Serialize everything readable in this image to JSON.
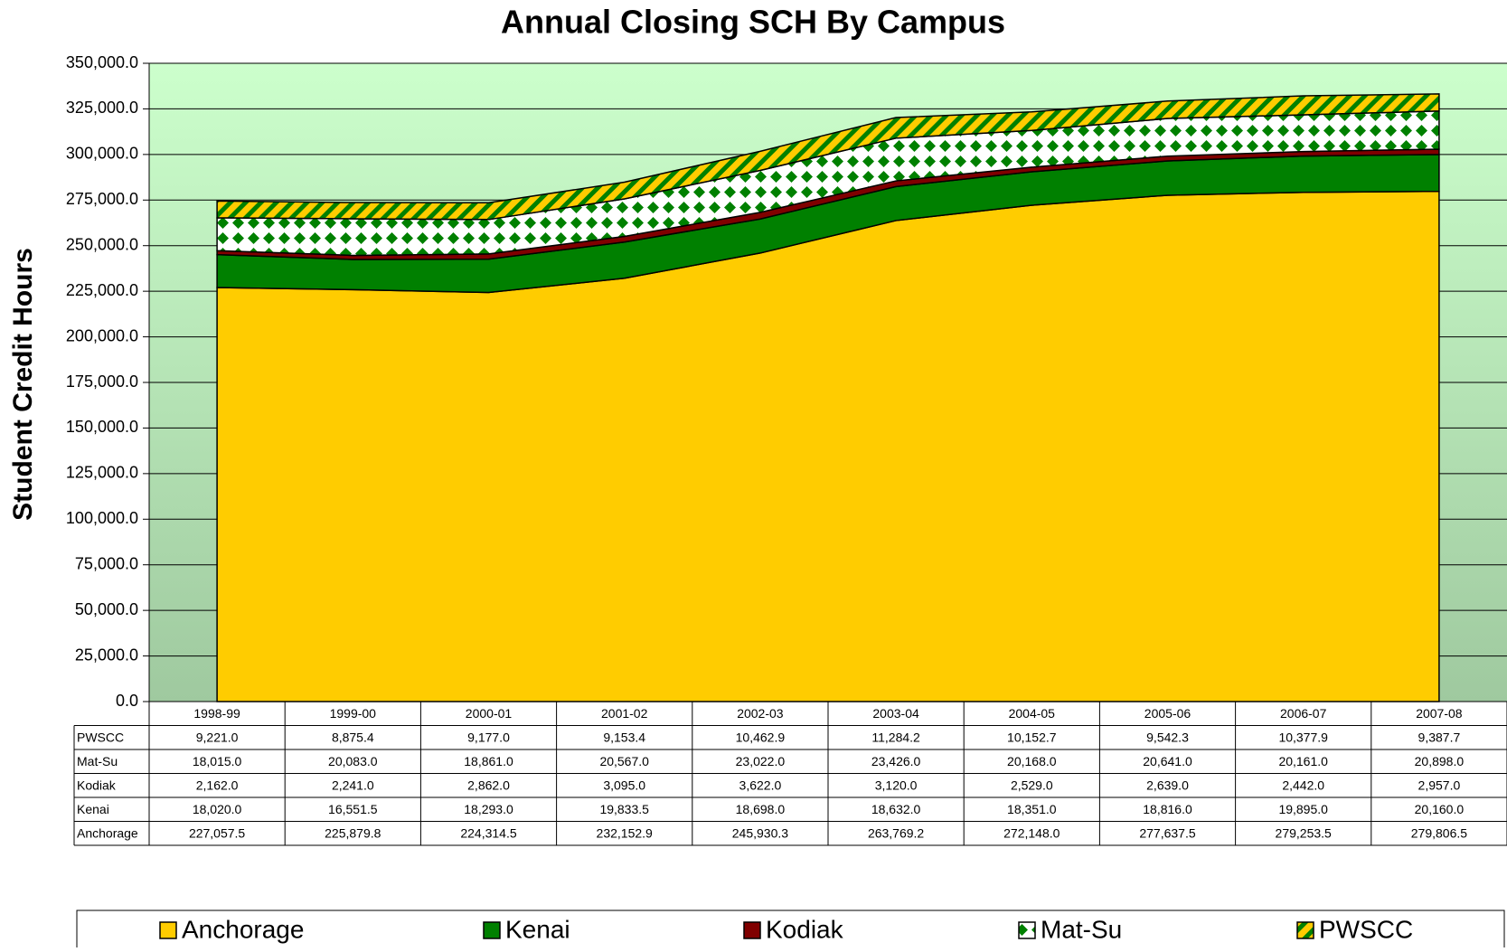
{
  "chart_data": {
    "type": "stacked_area",
    "title": "Annual Closing SCH By Campus",
    "y_label": "Student Credit Hours",
    "categories": [
      "1998-99",
      "1999-00",
      "2000-01",
      "2001-02",
      "2002-03",
      "2003-04",
      "2004-05",
      "2005-06",
      "2006-07",
      "2007-08"
    ],
    "series": [
      {
        "name": "Anchorage",
        "color": "#ffcc00",
        "values": [
          227057.5,
          225879.8,
          224314.5,
          232152.9,
          245930.3,
          263769.2,
          272148.0,
          277637.5,
          279253.5,
          279806.5
        ],
        "value_labels": [
          "227,057.5",
          "225,879.8",
          "224,314.5",
          "232,152.9",
          "245,930.3",
          "263,769.2",
          "272,148.0",
          "277,637.5",
          "279,253.5",
          "279,806.5"
        ]
      },
      {
        "name": "Kenai",
        "color": "#008000",
        "values": [
          18020.0,
          16551.5,
          18293.0,
          19833.5,
          18698.0,
          18632.0,
          18351.0,
          18816.0,
          19895.0,
          20160.0
        ],
        "value_labels": [
          "18,020.0",
          "16,551.5",
          "18,293.0",
          "19,833.5",
          "18,698.0",
          "18,632.0",
          "18,351.0",
          "18,816.0",
          "19,895.0",
          "20,160.0"
        ]
      },
      {
        "name": "Kodiak",
        "color": "#800000",
        "values": [
          2162.0,
          2241.0,
          2862.0,
          3095.0,
          3622.0,
          3120.0,
          2529.0,
          2639.0,
          2442.0,
          2957.0
        ],
        "value_labels": [
          "2,162.0",
          "2,241.0",
          "2,862.0",
          "3,095.0",
          "3,622.0",
          "3,120.0",
          "2,529.0",
          "2,639.0",
          "2,442.0",
          "2,957.0"
        ]
      },
      {
        "name": "Mat-Su",
        "color": "#008000",
        "pattern": "diamonds",
        "values": [
          18015.0,
          20083.0,
          18861.0,
          20567.0,
          23022.0,
          23426.0,
          20168.0,
          20641.0,
          20161.0,
          20898.0
        ],
        "value_labels": [
          "18,015.0",
          "20,083.0",
          "18,861.0",
          "20,567.0",
          "23,022.0",
          "23,426.0",
          "20,168.0",
          "20,641.0",
          "20,161.0",
          "20,898.0"
        ]
      },
      {
        "name": "PWSCC",
        "color": "#008000",
        "pattern": "stripes",
        "values": [
          9221.0,
          8875.4,
          9177.0,
          9153.4,
          10462.9,
          11284.2,
          10152.7,
          9542.3,
          10377.9,
          9387.7
        ],
        "value_labels": [
          "9,221.0",
          "8,875.4",
          "9,177.0",
          "9,153.4",
          "10,462.9",
          "11,284.2",
          "10,152.7",
          "9,542.3",
          "10,377.9",
          "9,387.7"
        ]
      }
    ],
    "ylim": [
      0,
      350000
    ],
    "yticks": [
      {
        "value": 0,
        "label": "0.0"
      },
      {
        "value": 25000,
        "label": "25,000.0"
      },
      {
        "value": 50000,
        "label": "50,000.0"
      },
      {
        "value": 75000,
        "label": "75,000.0"
      },
      {
        "value": 100000,
        "label": "100,000.0"
      },
      {
        "value": 125000,
        "label": "125,000.0"
      },
      {
        "value": 150000,
        "label": "150,000.0"
      },
      {
        "value": 175000,
        "label": "175,000.0"
      },
      {
        "value": 200000,
        "label": "200,000.0"
      },
      {
        "value": 225000,
        "label": "225,000.0"
      },
      {
        "value": 250000,
        "label": "250,000.0"
      },
      {
        "value": 275000,
        "label": "275,000.0"
      },
      {
        "value": 300000,
        "label": "300,000.0"
      },
      {
        "value": 325000,
        "label": "325,000.0"
      },
      {
        "value": 350000,
        "label": "350,000.0"
      }
    ],
    "grid": true,
    "legend": "bottom"
  }
}
